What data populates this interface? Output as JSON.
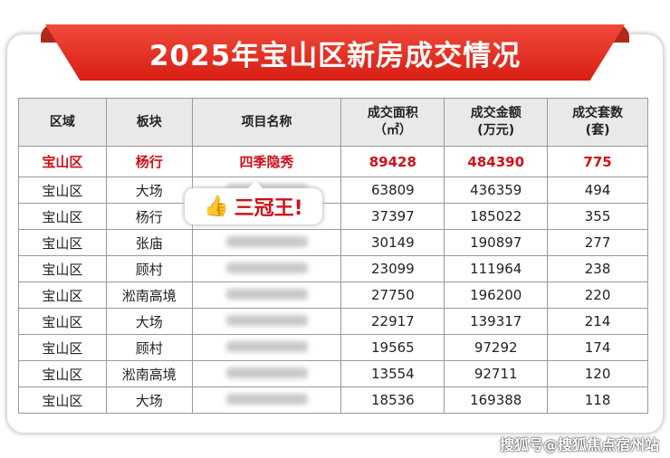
{
  "title": "2025年宝山区新房成交情况",
  "headers": [
    "区域",
    "板块",
    "项目名称",
    "成交面积\n（㎡）",
    "成交金额\n(万元)",
    "成交套数\n(套)"
  ],
  "rows": [
    [
      "宝山区",
      "杨行",
      "四季隐秀",
      "89428",
      "484390",
      "775"
    ],
    [
      "宝山区",
      "大场",
      "",
      "63809",
      "436359",
      "494"
    ],
    [
      "宝山区",
      "杨行",
      "",
      "37397",
      "185022",
      "355"
    ],
    [
      "宝山区",
      "张庙",
      "",
      "30149",
      "190897",
      "277"
    ],
    [
      "宝山区",
      "顾村",
      "",
      "23099",
      "111964",
      "238"
    ],
    [
      "宝山区",
      "淞南高境",
      "",
      "27750",
      "196200",
      "220"
    ],
    [
      "宝山区",
      "大场",
      "",
      "22917",
      "139317",
      "214"
    ],
    [
      "宝山区",
      "顾村",
      "",
      "19565",
      "97292",
      "174"
    ],
    [
      "宝山区",
      "淞南高境",
      "",
      "13554",
      "92711",
      "120"
    ],
    [
      "宝山区",
      "大场",
      "",
      "18536",
      "169388",
      "118"
    ]
  ],
  "badge": {
    "icon": "thumbs-up-icon",
    "text": "三冠王!"
  },
  "watermark": "搜狐号@搜狐焦点宿州站",
  "colors": {
    "accent": "#d0101a",
    "ribbon": "#e8302a"
  }
}
